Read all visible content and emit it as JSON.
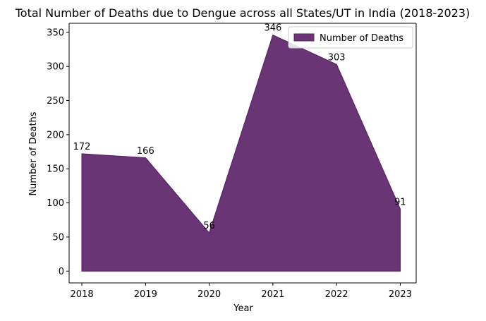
{
  "chart_data": {
    "type": "area",
    "title": "Total Number of Deaths due to Dengue across all States/UT in India (2018-2023)",
    "xlabel": "Year",
    "ylabel": "Number of Deaths",
    "x": [
      2018,
      2019,
      2020,
      2021,
      2022,
      2023
    ],
    "series": [
      {
        "name": "Number of Deaths",
        "values": [
          172,
          166,
          56,
          346,
          303,
          91
        ],
        "color": "#5c2468"
      }
    ],
    "data_labels": [
      "172",
      "166",
      "56",
      "346",
      "303",
      "91"
    ],
    "x_ticks": [
      "2018",
      "2019",
      "2020",
      "2021",
      "2022",
      "2023"
    ],
    "y_ticks": [
      0,
      50,
      100,
      150,
      200,
      250,
      300,
      350
    ],
    "xlim": [
      2017.8,
      2023.25
    ],
    "ylim": [
      -17.3,
      363.3
    ],
    "legend": {
      "placement": "top-right"
    },
    "grid": false
  }
}
